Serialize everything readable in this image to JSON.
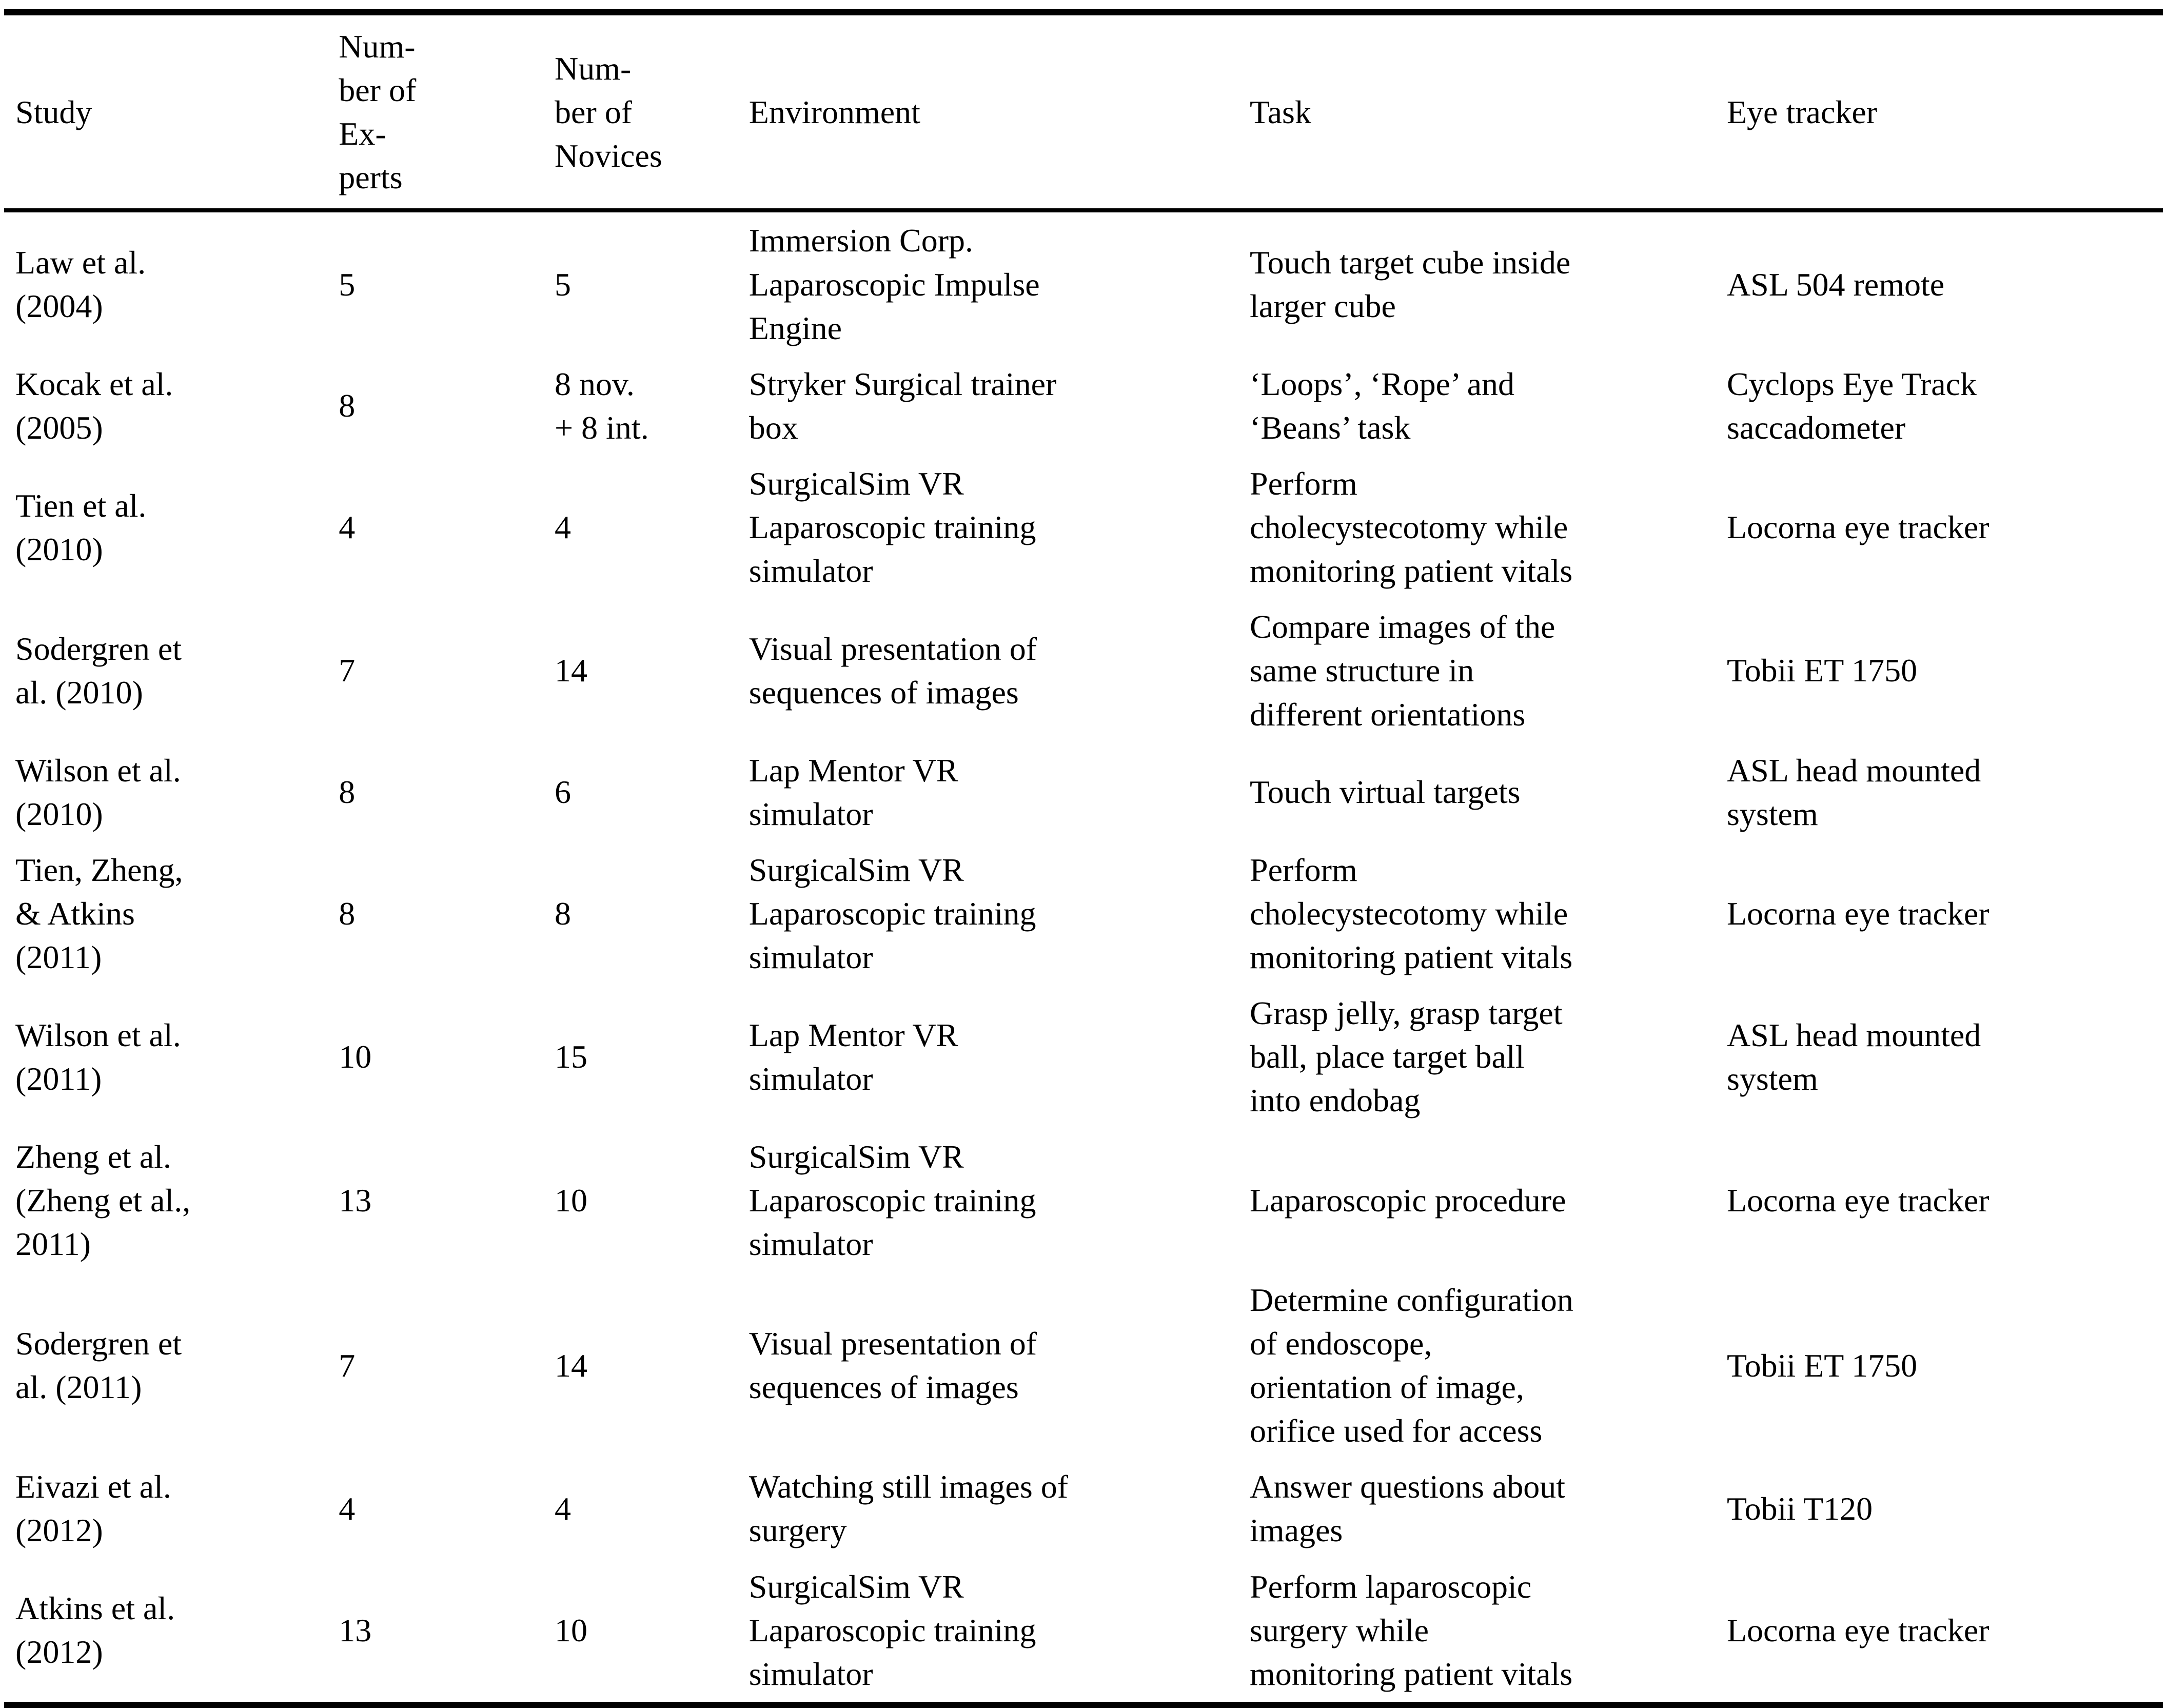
{
  "table": {
    "columns": [
      {
        "key": "study",
        "label": "Study"
      },
      {
        "key": "experts",
        "label": "Num-\nber of\nEx-\nperts"
      },
      {
        "key": "novices",
        "label": "Num-\nber of\nNovices"
      },
      {
        "key": "environment",
        "label": "Environment"
      },
      {
        "key": "task",
        "label": "Task"
      },
      {
        "key": "eye_tracker",
        "label": "Eye tracker"
      }
    ],
    "rows": [
      {
        "study": "Law et al.\n(2004)",
        "experts": "5",
        "novices": "5",
        "environment": "Immersion Corp.\nLaparoscopic Impulse\nEngine",
        "task": "Touch target cube inside\nlarger cube",
        "eye_tracker": "ASL 504 remote"
      },
      {
        "study": "Kocak et al.\n(2005)",
        "experts": "8",
        "novices": "8 nov.\n+ 8 int.",
        "environment": "Stryker Surgical trainer\nbox",
        "task": "‘Loops’, ‘Rope’ and\n‘Beans’ task",
        "eye_tracker": "Cyclops Eye Track\nsaccadometer"
      },
      {
        "study": "Tien et al.\n(2010)",
        "experts": "4",
        "novices": "4",
        "environment": "SurgicalSim VR\nLaparoscopic training\nsimulator",
        "task": "Perform\ncholecystecotomy while\nmonitoring patient vitals",
        "eye_tracker": "Locorna eye tracker"
      },
      {
        "study": "Sodergren et\nal. (2010)",
        "experts": "7",
        "novices": "14",
        "environment": "Visual presentation of\nsequences of images",
        "task": "Compare images of the\nsame structure in\ndifferent orientations",
        "eye_tracker": "Tobii ET 1750"
      },
      {
        "study": "Wilson et al.\n(2010)",
        "experts": "8",
        "novices": "6",
        "environment": "Lap Mentor VR\nsimulator",
        "task": "Touch virtual targets",
        "eye_tracker": "ASL head mounted\nsystem"
      },
      {
        "study": "Tien, Zheng,\n& Atkins\n(2011)",
        "experts": "8",
        "novices": "8",
        "environment": "SurgicalSim VR\nLaparoscopic training\nsimulator",
        "task": "Perform\ncholecystecotomy while\nmonitoring patient vitals",
        "eye_tracker": "Locorna eye tracker"
      },
      {
        "study": "Wilson et al.\n(2011)",
        "experts": "10",
        "novices": "15",
        "environment": "Lap Mentor VR\nsimulator",
        "task": "Grasp jelly, grasp target\nball, place target ball\ninto endobag",
        "eye_tracker": "ASL head mounted\nsystem"
      },
      {
        "study": "Zheng et al.\n(Zheng et al.,\n2011)",
        "experts": "13",
        "novices": "10",
        "environment": "SurgicalSim VR\nLaparoscopic training\nsimulator",
        "task": "Laparoscopic procedure",
        "eye_tracker": "Locorna eye tracker"
      },
      {
        "study": "Sodergren et\nal. (2011)",
        "experts": "7",
        "novices": "14",
        "environment": "Visual presentation of\nsequences of images",
        "task": "Determine configuration\nof endoscope,\norientation of image,\norifice used for access",
        "eye_tracker": "Tobii ET 1750"
      },
      {
        "study": "Eivazi et al.\n(2012)",
        "experts": "4",
        "novices": "4",
        "environment": "Watching still images of\nsurgery",
        "task": "Answer questions about\nimages",
        "eye_tracker": "Tobii T120"
      },
      {
        "study": "Atkins et al.\n(2012)",
        "experts": "13",
        "novices": "10",
        "environment": "SurgicalSim VR\nLaparoscopic training\nsimulator",
        "task": "Perform laparoscopic\nsurgery while\nmonitoring patient vitals",
        "eye_tracker": "Locorna eye tracker"
      }
    ]
  }
}
